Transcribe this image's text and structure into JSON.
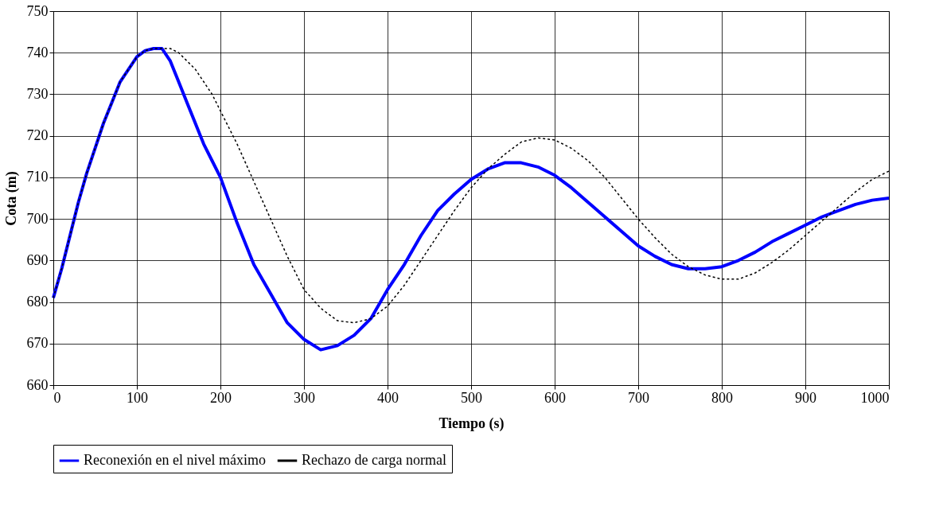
{
  "chart_data": {
    "type": "line",
    "xlabel": "Tiempo (s)",
    "ylabel": "Cota (m)",
    "xlim": [
      0,
      1000
    ],
    "xticks": [
      0,
      100,
      200,
      300,
      400,
      500,
      600,
      700,
      800,
      900,
      {
        "value": 1000,
        "label": "1000"
      }
    ],
    "ylim": [
      660,
      750
    ],
    "yticks": [
      660,
      670,
      680,
      690,
      700,
      710,
      720,
      730,
      740,
      750
    ],
    "grid": true,
    "legend": "bottom",
    "marker": "none",
    "x": [
      0,
      10,
      20,
      30,
      40,
      50,
      60,
      70,
      80,
      90,
      100,
      110,
      120,
      130,
      140,
      150,
      160,
      170,
      180,
      190,
      200,
      220,
      240,
      260,
      280,
      300,
      320,
      340,
      360,
      380,
      400,
      420,
      440,
      460,
      480,
      500,
      520,
      540,
      560,
      580,
      600,
      620,
      640,
      660,
      680,
      700,
      720,
      740,
      760,
      780,
      800,
      820,
      840,
      860,
      880,
      900,
      920,
      940,
      960,
      980,
      1000
    ],
    "series": [
      {
        "name": "Reconexión en el nivel máximo",
        "color": "#0000ff",
        "line_style": "solid",
        "values": [
          681,
          688,
          696,
          704,
          711,
          717,
          723,
          728,
          733,
          736,
          739,
          740.5,
          741,
          741,
          738,
          733,
          728,
          723,
          718,
          714,
          710,
          699,
          689,
          682,
          675,
          671,
          668.5,
          669.5,
          672,
          676,
          683,
          689,
          696,
          702,
          706,
          709.5,
          712,
          713.5,
          713.5,
          712.5,
          710.5,
          707.5,
          704,
          700.5,
          697,
          693.5,
          691,
          689,
          688,
          688,
          688.5,
          690,
          692,
          694.5,
          696.5,
          698.5,
          700.5,
          702,
          703.5,
          704.5,
          705
        ]
      },
      {
        "name": "Rechazo de carga normal",
        "color": "#000000",
        "line_style": "dotted",
        "values": [
          681,
          688,
          696,
          704,
          711,
          717,
          723,
          728,
          733,
          736,
          739,
          740.5,
          741,
          741,
          741,
          740,
          738,
          736,
          733,
          730,
          726,
          718,
          709,
          700,
          691,
          683,
          678.5,
          675.5,
          675,
          676,
          679,
          684,
          690,
          696,
          702,
          707.5,
          712,
          715.5,
          718.5,
          719.5,
          719,
          717,
          714,
          710,
          705,
          700,
          695.5,
          691.5,
          688.5,
          686.5,
          685.5,
          685.5,
          687,
          689.5,
          692.5,
          696,
          699.5,
          703,
          706.5,
          709.5,
          711.5
        ]
      }
    ]
  }
}
